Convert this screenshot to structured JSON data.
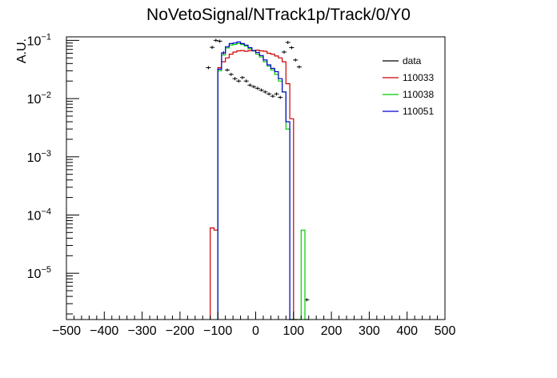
{
  "chart_data": {
    "type": "histogram",
    "title": "NoVetoSignal/NTrack1p/Track/0/Y0",
    "xlabel": "",
    "ylabel": "A.U.",
    "xlim": [
      -500,
      500
    ],
    "ylim": [
      1.6e-06,
      0.115
    ],
    "yscale": "log",
    "bin_width": 10,
    "grid": false,
    "legend_position": "top-right",
    "x_ticks": [
      -500,
      -400,
      -300,
      -200,
      -100,
      0,
      100,
      200,
      300,
      400,
      500
    ],
    "y_ticks": [
      {
        "value": 1e-05,
        "base": "10",
        "exp": "−5"
      },
      {
        "value": 0.0001,
        "base": "10",
        "exp": "−4"
      },
      {
        "value": 0.001,
        "base": "10",
        "exp": "−3"
      },
      {
        "value": 0.01,
        "base": "10",
        "exp": "−2"
      },
      {
        "value": 0.1,
        "base": "10",
        "exp": "−1"
      }
    ],
    "series": [
      {
        "name": "data",
        "style": "markers",
        "color": "#000000",
        "bins_low_edge": [
          -130,
          -120,
          -110,
          -100,
          -90,
          -80,
          -70,
          -60,
          -50,
          -40,
          -30,
          -20,
          -10,
          0,
          10,
          20,
          30,
          40,
          50,
          60,
          70,
          80,
          90,
          100,
          110,
          120,
          130
        ],
        "values": [
          0.034,
          0.076,
          0.1,
          0.097,
          0.061,
          0.031,
          0.026,
          0.022,
          0.02,
          0.023,
          0.02,
          0.017,
          0.016,
          0.015,
          0.014,
          0.013,
          0.012,
          0.011,
          0.012,
          0.0105,
          0.063,
          0.092,
          0.075,
          0.046,
          0.035,
          0.0,
          3.5e-06
        ]
      },
      {
        "name": "110033",
        "style": "step",
        "color": "#cc0000",
        "bins_low_edge": [
          -120,
          -110,
          -100,
          -90,
          -80,
          -70,
          -60,
          -50,
          -40,
          -30,
          -20,
          -10,
          0,
          10,
          20,
          30,
          40,
          50,
          60,
          70,
          80,
          90,
          100
        ],
        "values": [
          6e-05,
          5.5e-05,
          0.034,
          0.043,
          0.05,
          0.058,
          0.063,
          0.066,
          0.067,
          0.065,
          0.067,
          0.066,
          0.068,
          0.066,
          0.065,
          0.06,
          0.058,
          0.054,
          0.05,
          0.043,
          0.018,
          0.0045,
          0.0
        ]
      },
      {
        "name": "110038",
        "style": "step",
        "color": "#00cc00",
        "bins_low_edge": [
          -100,
          -90,
          -80,
          -70,
          -60,
          -50,
          -40,
          -30,
          -20,
          -10,
          0,
          10,
          20,
          30,
          40,
          50,
          60,
          70,
          80,
          90,
          100,
          110,
          120,
          130
        ],
        "values": [
          0.03,
          0.056,
          0.074,
          0.083,
          0.085,
          0.088,
          0.085,
          0.08,
          0.072,
          0.066,
          0.058,
          0.052,
          0.043,
          0.036,
          0.031,
          0.026,
          0.02,
          0.013,
          0.003,
          0.0,
          0.0,
          0.0,
          5.5e-05,
          0.0
        ]
      },
      {
        "name": "110051",
        "style": "step",
        "color": "#0000cc",
        "bins_low_edge": [
          -100,
          -90,
          -80,
          -70,
          -60,
          -50,
          -40,
          -30,
          -20,
          -10,
          0,
          10,
          20,
          30,
          40,
          50,
          60,
          70,
          80,
          90
        ],
        "values": [
          0.032,
          0.061,
          0.078,
          0.088,
          0.09,
          0.094,
          0.088,
          0.083,
          0.075,
          0.067,
          0.062,
          0.055,
          0.046,
          0.038,
          0.033,
          0.029,
          0.022,
          0.013,
          0.004,
          0.0
        ]
      }
    ]
  }
}
